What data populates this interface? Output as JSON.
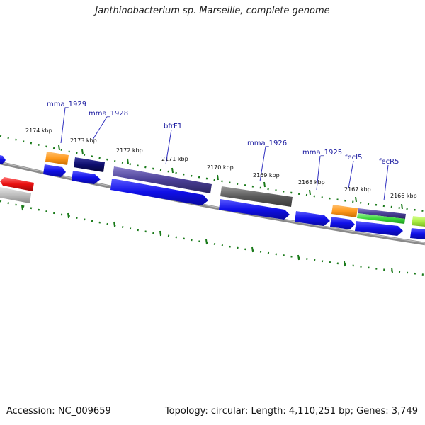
{
  "title": "Janthinobacterium sp. Marseille, complete genome",
  "footer": {
    "accession": "Accession: NC_009659",
    "summary": "Topology: circular; Length: 4,110,251 bp; Genes: 3,749"
  },
  "tick_labels": [
    "2174 kbp",
    "2173 kbp",
    "2172 kbp",
    "2171 kbp",
    "2170 kbp",
    "2169 kbp",
    "2168 kbp",
    "2167 kbp",
    "2166 kbp"
  ],
  "gene_labels": [
    "mma_1929",
    "mma_1928",
    "bfrF1",
    "mma_1926",
    "mma_1925",
    "fecI5",
    "fecR5"
  ],
  "colors": {
    "cds_blue": "#1010e8",
    "orange": "#ff9a1c",
    "navy": "#0d0d6e",
    "purple": "#4a3f96",
    "gray": "#5a5a5a",
    "red": "#e81010",
    "light_gray": "#bdbdbd",
    "green": "#3ed83e",
    "lime": "#aaee44",
    "backbone": "#8a8a8a",
    "tick_green": "#1a7a1a",
    "label_line": "#3030c0"
  }
}
